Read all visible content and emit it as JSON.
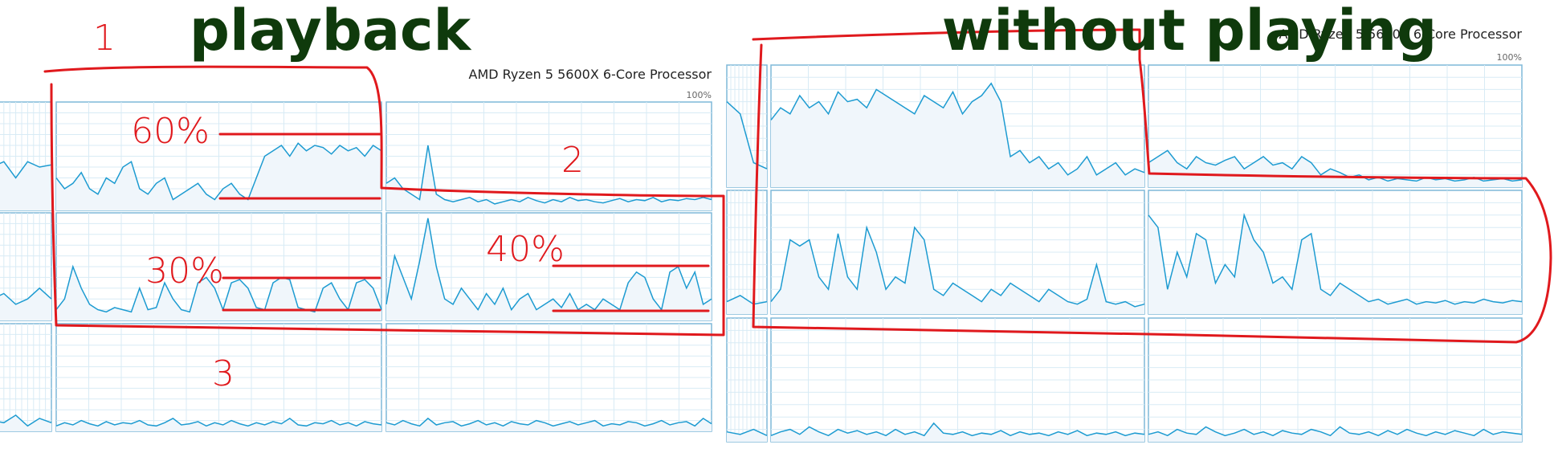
{
  "left": {
    "heading": "playback",
    "title": "AMD Ryzen 5 5600X 6-Core Processor",
    "max_label": "100%",
    "graphs": [
      {
        "values": [
          40,
          45,
          30,
          45,
          40,
          42
        ]
      },
      {
        "values": [
          20,
          25,
          15,
          20,
          30,
          20
        ]
      },
      {
        "values": [
          10,
          8,
          15,
          5,
          12,
          8
        ]
      },
      {
        "values": [
          30,
          20,
          25,
          35,
          20,
          15,
          30,
          25,
          40,
          45,
          20,
          15,
          25,
          30,
          10,
          15,
          20,
          25,
          15,
          10,
          20,
          25,
          15,
          10,
          30,
          50,
          55,
          60,
          50,
          62,
          55,
          60,
          58,
          52,
          60,
          55,
          58,
          50,
          60,
          55
        ]
      },
      {
        "values": [
          25,
          30,
          20,
          15,
          10,
          60,
          15,
          10,
          8,
          10,
          12,
          8,
          10,
          6,
          8,
          10,
          8,
          12,
          9,
          7,
          10,
          8,
          12,
          9,
          10,
          8,
          7,
          9,
          11,
          8,
          10,
          9,
          12,
          8,
          10,
          9,
          11,
          10,
          12,
          10
        ]
      },
      {
        "values": [
          10,
          20,
          50,
          30,
          15,
          10,
          8,
          12,
          10,
          8,
          30,
          10,
          12,
          35,
          20,
          10,
          8,
          35,
          40,
          30,
          10,
          35,
          38,
          30,
          12,
          10,
          35,
          40,
          38,
          12,
          10,
          8,
          30,
          35,
          20,
          10,
          35,
          38,
          30,
          10
        ]
      },
      {
        "values": [
          15,
          60,
          40,
          20,
          55,
          95,
          50,
          20,
          15,
          30,
          20,
          10,
          25,
          15,
          30,
          10,
          20,
          25,
          10,
          15,
          20,
          12,
          25,
          10,
          15,
          10,
          20,
          15,
          10,
          35,
          45,
          40,
          20,
          10,
          45,
          50,
          30,
          45,
          15,
          20
        ]
      },
      {
        "values": [
          5,
          8,
          6,
          10,
          7,
          5,
          9,
          6,
          8,
          7,
          10,
          6,
          5,
          8,
          12,
          6,
          7,
          9,
          5,
          8,
          6,
          10,
          7,
          5,
          8,
          6,
          9,
          7,
          12,
          6,
          5,
          8,
          7,
          10,
          6,
          8,
          5,
          9,
          7,
          6
        ]
      },
      {
        "values": [
          8,
          6,
          10,
          7,
          5,
          12,
          6,
          8,
          9,
          5,
          7,
          10,
          6,
          8,
          5,
          9,
          7,
          6,
          10,
          8,
          5,
          7,
          9,
          6,
          8,
          10,
          5,
          7,
          6,
          9,
          8,
          5,
          7,
          10,
          6,
          8,
          9,
          5,
          12,
          7
        ]
      }
    ]
  },
  "right": {
    "heading": "without playing",
    "title": "AMD Ryzen 5 5600X 6-Core Processor",
    "max_label": "100%",
    "graphs": [
      {
        "values": [
          70,
          60,
          20,
          15
        ]
      },
      {
        "values": [
          10,
          15,
          8,
          10
        ]
      },
      {
        "values": [
          8,
          6,
          10,
          5
        ]
      },
      {
        "values": [
          55,
          65,
          60,
          75,
          65,
          70,
          60,
          78,
          70,
          72,
          65,
          80,
          75,
          70,
          65,
          60,
          75,
          70,
          65,
          78,
          60,
          70,
          75,
          85,
          70,
          25,
          30,
          20,
          25,
          15,
          20,
          10,
          15,
          25,
          10,
          15,
          20,
          10,
          15,
          12
        ]
      },
      {
        "values": [
          20,
          25,
          30,
          20,
          15,
          25,
          20,
          18,
          22,
          25,
          15,
          20,
          25,
          18,
          20,
          15,
          25,
          20,
          10,
          15,
          12,
          8,
          10,
          6,
          8,
          5,
          7,
          6,
          5,
          8,
          6,
          7,
          5,
          6,
          8,
          5,
          6,
          7,
          5,
          6
        ]
      },
      {
        "values": [
          10,
          20,
          60,
          55,
          60,
          30,
          20,
          65,
          30,
          20,
          70,
          50,
          20,
          30,
          25,
          70,
          60,
          20,
          15,
          25,
          20,
          15,
          10,
          20,
          15,
          25,
          20,
          15,
          10,
          20,
          15,
          10,
          8,
          12,
          40,
          10,
          8,
          10,
          6,
          8
        ]
      },
      {
        "values": [
          80,
          70,
          20,
          50,
          30,
          65,
          60,
          25,
          40,
          30,
          80,
          60,
          50,
          25,
          30,
          20,
          60,
          65,
          20,
          15,
          25,
          20,
          15,
          10,
          12,
          8,
          10,
          12,
          8,
          10,
          9,
          11,
          8,
          10,
          9,
          12,
          10,
          9,
          11,
          10
        ]
      },
      {
        "values": [
          5,
          8,
          10,
          6,
          12,
          8,
          5,
          10,
          7,
          9,
          6,
          8,
          5,
          10,
          6,
          8,
          5,
          15,
          7,
          6,
          8,
          5,
          7,
          6,
          9,
          5,
          8,
          6,
          7,
          5,
          8,
          6,
          9,
          5,
          7,
          6,
          8,
          5,
          7,
          6
        ]
      },
      {
        "values": [
          6,
          8,
          5,
          10,
          7,
          6,
          12,
          8,
          5,
          7,
          10,
          6,
          8,
          5,
          9,
          7,
          6,
          10,
          8,
          5,
          12,
          7,
          6,
          8,
          5,
          9,
          6,
          10,
          7,
          5,
          8,
          6,
          9,
          7,
          5,
          10,
          6,
          8,
          7,
          6
        ]
      }
    ]
  },
  "annotations": [
    "1",
    "60%",
    "2",
    "30%",
    "40%",
    "3"
  ]
}
